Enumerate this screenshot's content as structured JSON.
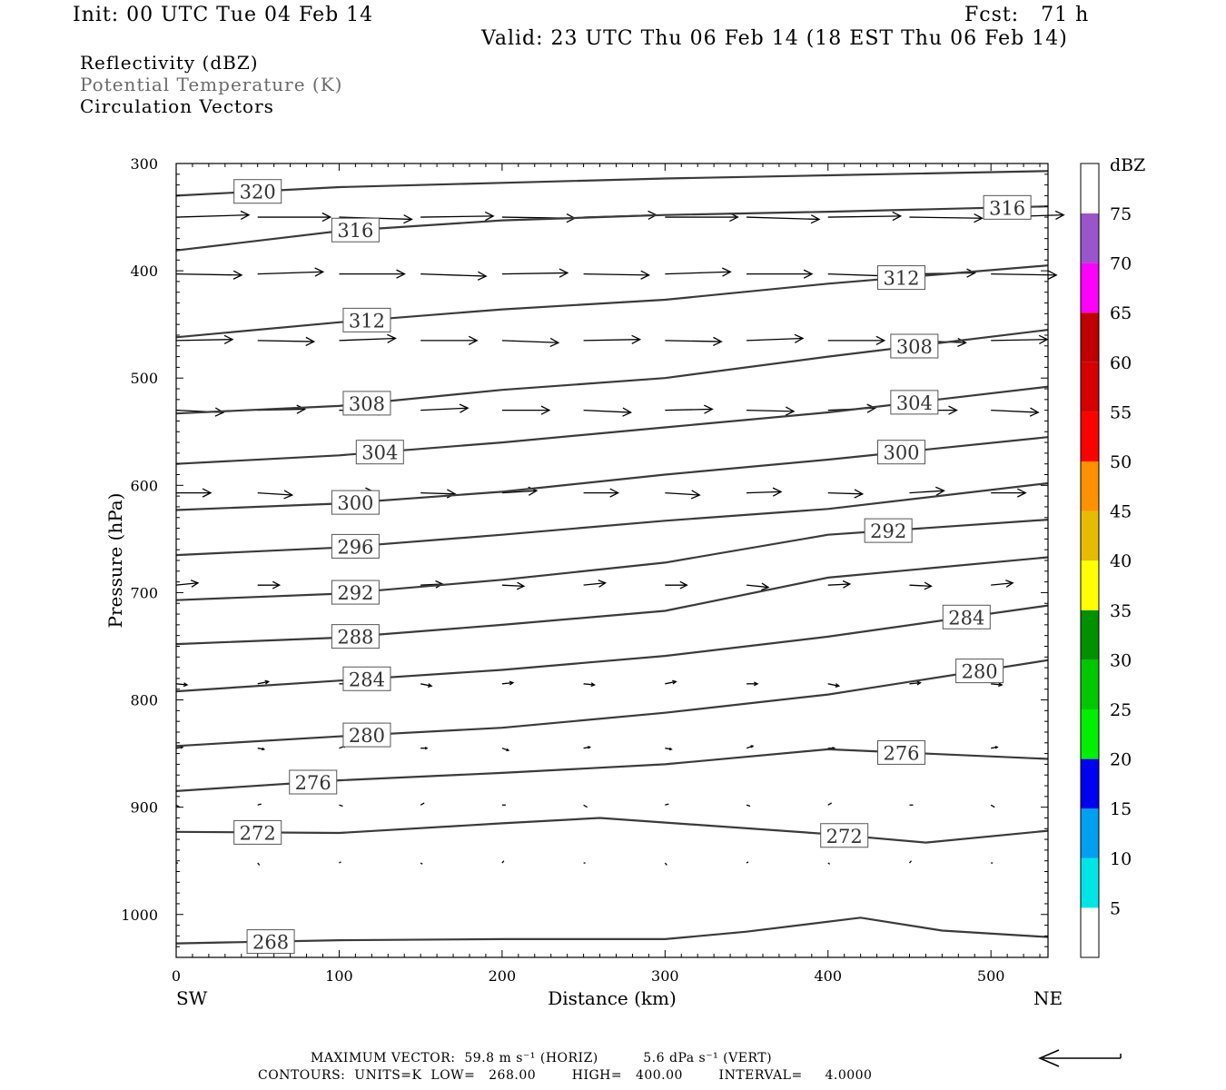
{
  "header": {
    "init": "Init: 00 UTC Tue 04 Feb 14",
    "fcst": "Fcst:   71 h",
    "valid": "Valid: 23 UTC Thu 06 Feb 14 (18 EST Thu 06 Feb 14)"
  },
  "legend": {
    "line1": "Reflectivity (dBZ)",
    "line2": "Potential Temperature (K)",
    "line3": "Circulation Vectors"
  },
  "footer": {
    "max_vector": "MAXIMUM VECTOR:  59.8 m s⁻¹ (HORIZ)          5.6 dPa s⁻¹ (VERT)",
    "contours": "CONTOURS:  UNITS=K  LOW=   268.00        HIGH=   400.00        INTERVAL=     4.0000"
  },
  "chart_data": {
    "type": "line",
    "title": "",
    "xlabel": "Distance (km)",
    "ylabel": "Pressure (hPa)",
    "xlim": [
      0,
      535
    ],
    "ylim": [
      1040,
      300
    ],
    "x_ticks": [
      0,
      100,
      200,
      300,
      400,
      500
    ],
    "y_ticks": [
      300,
      400,
      500,
      600,
      700,
      800,
      900,
      1000
    ],
    "x_end_labels": {
      "left": "SW",
      "right": "NE"
    },
    "contour_interval": 4,
    "series": [
      {
        "name": "320",
        "x": [
          0,
          100,
          200,
          300,
          400,
          535
        ],
        "values": [
          330,
          322,
          318,
          314,
          311,
          307
        ]
      },
      {
        "name": "316",
        "x": [
          0,
          100,
          200,
          300,
          400,
          535
        ],
        "values": [
          381,
          363,
          353,
          348,
          345,
          340
        ]
      },
      {
        "name": "312",
        "x": [
          0,
          100,
          200,
          300,
          400,
          535
        ],
        "values": [
          462,
          448,
          436,
          427,
          412,
          395
        ]
      },
      {
        "name": "308",
        "x": [
          0,
          100,
          200,
          300,
          400,
          535
        ],
        "values": [
          533,
          526,
          511,
          500,
          480,
          455
        ]
      },
      {
        "name": "304",
        "x": [
          0,
          100,
          200,
          300,
          400,
          535
        ],
        "values": [
          580,
          572,
          560,
          546,
          532,
          508
        ]
      },
      {
        "name": "300",
        "x": [
          0,
          100,
          200,
          300,
          400,
          535
        ],
        "values": [
          623,
          617,
          606,
          590,
          576,
          555
        ]
      },
      {
        "name": "296",
        "x": [
          0,
          100,
          200,
          300,
          400,
          535
        ],
        "values": [
          665,
          658,
          646,
          633,
          622,
          598
        ]
      },
      {
        "name": "292",
        "x": [
          0,
          100,
          200,
          300,
          400,
          535
        ],
        "values": [
          707,
          701,
          688,
          672,
          646,
          632
        ]
      },
      {
        "name": "288",
        "x": [
          0,
          100,
          200,
          300,
          400,
          535
        ],
        "values": [
          748,
          742,
          730,
          717,
          686,
          667
        ]
      },
      {
        "name": "284",
        "x": [
          0,
          100,
          200,
          300,
          400,
          535
        ],
        "values": [
          792,
          782,
          772,
          759,
          741,
          712
        ]
      },
      {
        "name": "280",
        "x": [
          0,
          100,
          200,
          300,
          400,
          535
        ],
        "values": [
          843,
          834,
          826,
          812,
          795,
          763
        ]
      },
      {
        "name": "276",
        "x": [
          0,
          100,
          200,
          300,
          400,
          535
        ],
        "values": [
          885,
          875,
          868,
          860,
          846,
          855
        ]
      },
      {
        "name": "272",
        "x": [
          0,
          100,
          200,
          260,
          400,
          460,
          535
        ],
        "values": [
          923,
          924,
          915,
          910,
          925,
          933,
          922
        ]
      },
      {
        "name": "268",
        "x": [
          0,
          100,
          200,
          300,
          350,
          420,
          470,
          535
        ],
        "values": [
          1027,
          1024,
          1023,
          1023,
          1016,
          1003,
          1015,
          1021
        ]
      }
    ],
    "colorbar": {
      "label": "dBZ",
      "ticks": [
        5,
        10,
        15,
        20,
        25,
        30,
        35,
        40,
        45,
        50,
        55,
        60,
        65,
        70,
        75
      ],
      "colors": [
        "#00e6e6",
        "#00a0f0",
        "#0000f0",
        "#00f000",
        "#00c800",
        "#009000",
        "#ffff00",
        "#e6bc00",
        "#ff9000",
        "#ff0000",
        "#d60000",
        "#c00000",
        "#ff00ff",
        "#9955c9"
      ]
    }
  }
}
